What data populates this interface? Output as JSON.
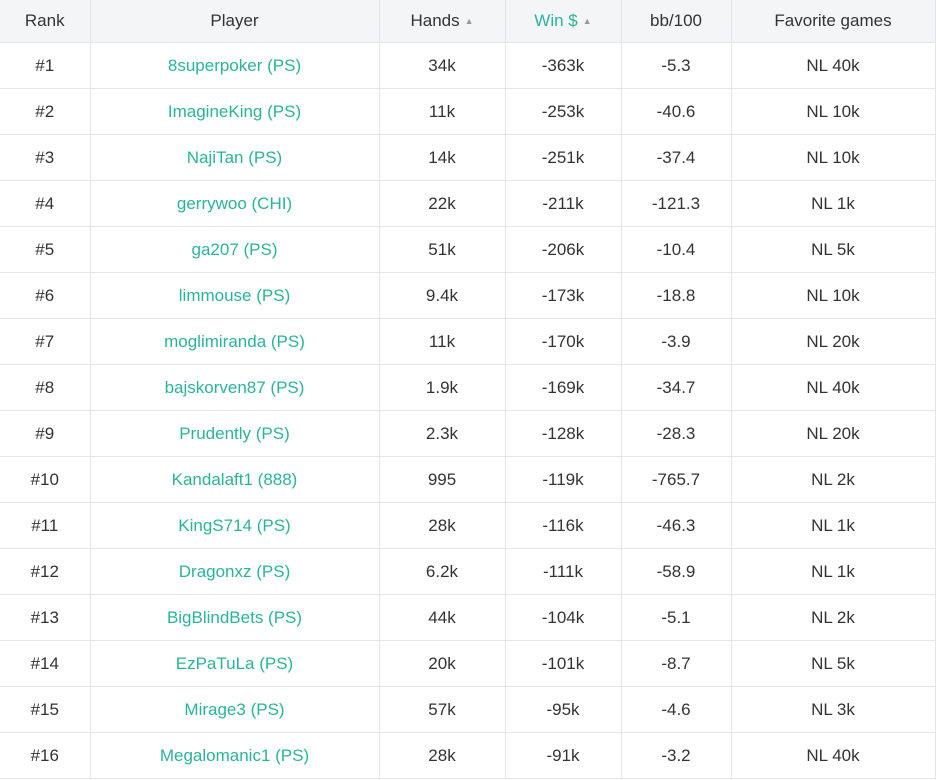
{
  "colors": {
    "accent": "#2bb39a",
    "header_bg": "#f4f5f6",
    "border": "#e3e5e8",
    "text": "#333333"
  },
  "headers": {
    "rank": "Rank",
    "player": "Player",
    "hands": "Hands",
    "win": "Win $",
    "bb100": "bb/100",
    "favorite": "Favorite games"
  },
  "sort_icon": "sort-up-icon",
  "rows": [
    {
      "rank": "#1",
      "player": "8superpoker (PS)",
      "hands": "34k",
      "win": "-363k",
      "bb100": "-5.3",
      "favorite": "NL 40k"
    },
    {
      "rank": "#2",
      "player": "ImagineKing (PS)",
      "hands": "11k",
      "win": "-253k",
      "bb100": "-40.6",
      "favorite": "NL 10k"
    },
    {
      "rank": "#3",
      "player": "NajiTan (PS)",
      "hands": "14k",
      "win": "-251k",
      "bb100": "-37.4",
      "favorite": "NL 10k"
    },
    {
      "rank": "#4",
      "player": "gerrywoo (CHI)",
      "hands": "22k",
      "win": "-211k",
      "bb100": "-121.3",
      "favorite": "NL 1k"
    },
    {
      "rank": "#5",
      "player": "ga207 (PS)",
      "hands": "51k",
      "win": "-206k",
      "bb100": "-10.4",
      "favorite": "NL 5k"
    },
    {
      "rank": "#6",
      "player": "limmouse (PS)",
      "hands": "9.4k",
      "win": "-173k",
      "bb100": "-18.8",
      "favorite": "NL 10k"
    },
    {
      "rank": "#7",
      "player": "moglimiranda (PS)",
      "hands": "11k",
      "win": "-170k",
      "bb100": "-3.9",
      "favorite": "NL 20k"
    },
    {
      "rank": "#8",
      "player": "bajskorven87 (PS)",
      "hands": "1.9k",
      "win": "-169k",
      "bb100": "-34.7",
      "favorite": "NL 40k"
    },
    {
      "rank": "#9",
      "player": "Prudently (PS)",
      "hands": "2.3k",
      "win": "-128k",
      "bb100": "-28.3",
      "favorite": "NL 20k"
    },
    {
      "rank": "#10",
      "player": "Kandalaft1 (888)",
      "hands": "995",
      "win": "-119k",
      "bb100": "-765.7",
      "favorite": "NL 2k"
    },
    {
      "rank": "#11",
      "player": "KingS714 (PS)",
      "hands": "28k",
      "win": "-116k",
      "bb100": "-46.3",
      "favorite": "NL 1k"
    },
    {
      "rank": "#12",
      "player": "Dragonxz (PS)",
      "hands": "6.2k",
      "win": "-111k",
      "bb100": "-58.9",
      "favorite": "NL 1k"
    },
    {
      "rank": "#13",
      "player": "BigBlindBets (PS)",
      "hands": "44k",
      "win": "-104k",
      "bb100": "-5.1",
      "favorite": "NL 2k"
    },
    {
      "rank": "#14",
      "player": "EzPaTuLa (PS)",
      "hands": "20k",
      "win": "-101k",
      "bb100": "-8.7",
      "favorite": "NL 5k"
    },
    {
      "rank": "#15",
      "player": "Mirage3 (PS)",
      "hands": "57k",
      "win": "-95k",
      "bb100": "-4.6",
      "favorite": "NL 3k"
    },
    {
      "rank": "#16",
      "player": "Megalomanic1 (PS)",
      "hands": "28k",
      "win": "-91k",
      "bb100": "-3.2",
      "favorite": "NL 40k"
    }
  ]
}
